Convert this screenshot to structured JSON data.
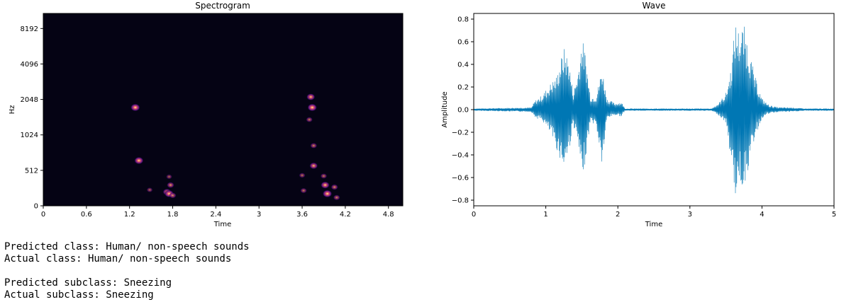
{
  "chart_data": [
    {
      "type": "heatmap",
      "title": "Spectrogram",
      "xlabel": "Time",
      "ylabel": "Hz",
      "xlim": [
        0,
        5.0
      ],
      "x_ticks": [
        0,
        0.6,
        1.2,
        1.8,
        2.4,
        3,
        3.6,
        4.2,
        4.8
      ],
      "x_tick_labels": [
        "0",
        "0.6",
        "1.2",
        "1.8",
        "2.4",
        "3",
        "3.6",
        "4.2",
        "4.8"
      ],
      "y_scale": "log2",
      "y_ticks": [
        0,
        512,
        1024,
        2048,
        4096,
        8192
      ],
      "y_tick_labels": [
        "0",
        "512",
        "1024",
        "2048",
        "4096",
        "8192"
      ],
      "colormap": "magma",
      "background_color": "#050314",
      "hotspots": [
        {
          "t": 1.28,
          "hz": 1750,
          "intensity": 0.95
        },
        {
          "t": 1.33,
          "hz": 620,
          "intensity": 0.9
        },
        {
          "t": 1.48,
          "hz": 230,
          "intensity": 0.35
        },
        {
          "t": 1.72,
          "hz": 200,
          "intensity": 0.75
        },
        {
          "t": 1.75,
          "hz": 175,
          "intensity": 0.9
        },
        {
          "t": 1.77,
          "hz": 300,
          "intensity": 0.6
        },
        {
          "t": 1.75,
          "hz": 420,
          "intensity": 0.35
        },
        {
          "t": 1.8,
          "hz": 150,
          "intensity": 0.55
        },
        {
          "t": 3.72,
          "hz": 2150,
          "intensity": 0.8
        },
        {
          "t": 3.74,
          "hz": 1750,
          "intensity": 0.95
        },
        {
          "t": 3.7,
          "hz": 1380,
          "intensity": 0.45
        },
        {
          "t": 3.76,
          "hz": 830,
          "intensity": 0.5
        },
        {
          "t": 3.76,
          "hz": 560,
          "intensity": 0.75
        },
        {
          "t": 3.6,
          "hz": 440,
          "intensity": 0.4
        },
        {
          "t": 3.62,
          "hz": 220,
          "intensity": 0.45
        },
        {
          "t": 3.9,
          "hz": 430,
          "intensity": 0.45
        },
        {
          "t": 3.92,
          "hz": 300,
          "intensity": 0.85
        },
        {
          "t": 3.95,
          "hz": 175,
          "intensity": 0.95
        },
        {
          "t": 4.05,
          "hz": 270,
          "intensity": 0.55
        },
        {
          "t": 4.08,
          "hz": 120,
          "intensity": 0.5
        }
      ]
    },
    {
      "type": "line",
      "title": "Wave",
      "xlabel": "Time",
      "ylabel": "Amplitude",
      "xlim": [
        0,
        5
      ],
      "ylim": [
        -0.85,
        0.85
      ],
      "x_ticks": [
        0,
        1,
        2,
        3,
        4,
        5
      ],
      "x_tick_labels": [
        "0",
        "1",
        "2",
        "3",
        "4",
        "5"
      ],
      "y_ticks": [
        -0.8,
        -0.6,
        -0.4,
        -0.2,
        0.0,
        0.2,
        0.4,
        0.6,
        0.8
      ],
      "y_tick_labels": [
        "−0.8",
        "−0.6",
        "−0.4",
        "−0.2",
        "0.0",
        "0.2",
        "0.4",
        "0.6",
        "0.8"
      ],
      "color": "#0077b4",
      "envelope": {
        "t": [
          0,
          0.8,
          0.85,
          0.95,
          1.05,
          1.15,
          1.25,
          1.32,
          1.38,
          1.45,
          1.5,
          1.55,
          1.62,
          1.7,
          1.78,
          1.85,
          1.95,
          2.05,
          2.1,
          2.5,
          3.3,
          3.4,
          3.5,
          3.58,
          3.63,
          3.68,
          3.75,
          3.82,
          3.9,
          4.0,
          4.08,
          4.15,
          4.25,
          4.4,
          4.6,
          5.0
        ],
        "upper": [
          0.01,
          0.02,
          0.08,
          0.13,
          0.22,
          0.3,
          0.55,
          0.45,
          0.15,
          0.35,
          0.65,
          0.5,
          0.12,
          0.12,
          0.38,
          0.1,
          0.06,
          0.07,
          0.01,
          0.01,
          0.01,
          0.06,
          0.15,
          0.4,
          0.78,
          0.7,
          0.75,
          0.55,
          0.3,
          0.1,
          0.05,
          0.03,
          0.02,
          0.02,
          0.01,
          0.01
        ],
        "lower": [
          -0.01,
          -0.02,
          -0.07,
          -0.1,
          -0.2,
          -0.35,
          -0.53,
          -0.38,
          -0.12,
          -0.33,
          -0.65,
          -0.45,
          -0.1,
          -0.15,
          -0.5,
          -0.08,
          -0.05,
          -0.06,
          -0.01,
          -0.01,
          -0.01,
          -0.05,
          -0.12,
          -0.5,
          -0.77,
          -0.65,
          -0.7,
          -0.5,
          -0.25,
          -0.08,
          -0.04,
          -0.03,
          -0.02,
          -0.02,
          -0.01,
          -0.01
        ]
      }
    }
  ],
  "output": {
    "predicted_class": "Predicted class: Human/ non-speech sounds",
    "actual_class": "Actual class: Human/ non-speech sounds",
    "predicted_subclass": "Predicted subclass: Sneezing",
    "actual_subclass": "Actual subclass: Sneezing"
  }
}
